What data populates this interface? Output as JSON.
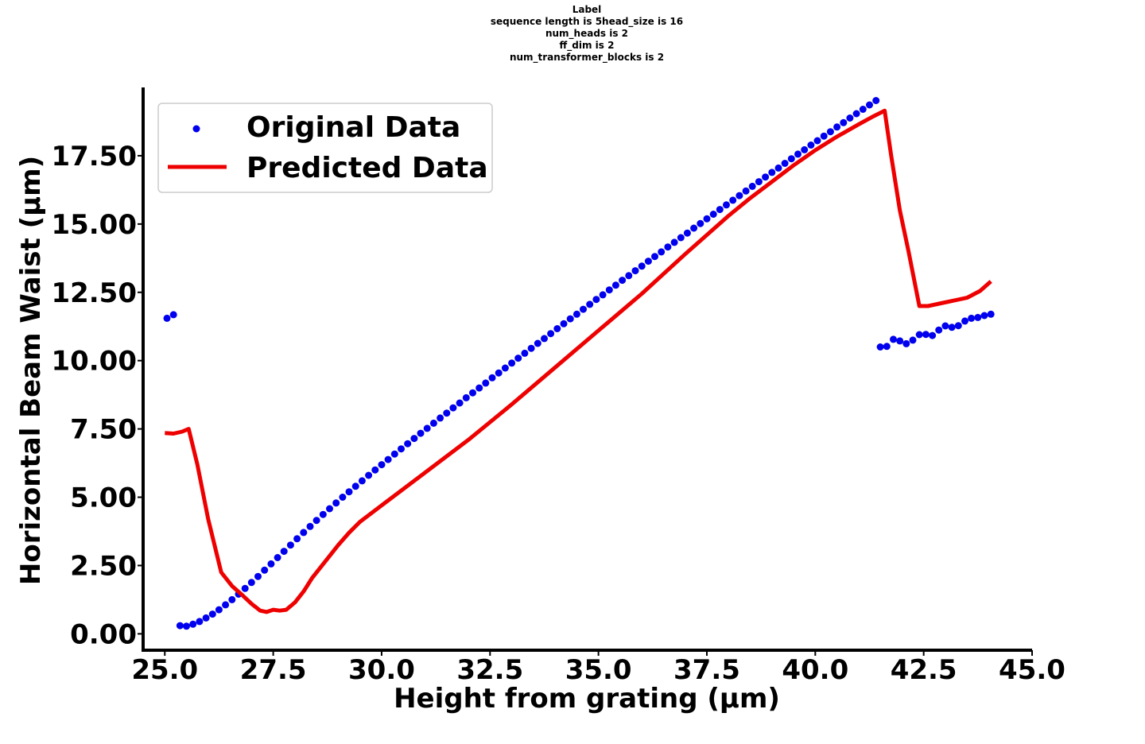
{
  "chart_data": {
    "type": "line",
    "title_lines": [
      "Label",
      "sequence length is 5head_size is 16",
      "num_heads is 2",
      "ff_dim is 2",
      "num_transformer_blocks is 2"
    ],
    "xlabel": "Height from grating (µm)",
    "ylabel": "Horizontal Beam Waist (µm)",
    "xlim": [
      24.5,
      45.0
    ],
    "ylim": [
      -0.6,
      20.0
    ],
    "x_ticks": [
      25.0,
      27.5,
      30.0,
      32.5,
      35.0,
      37.5,
      40.0,
      42.5,
      45.0
    ],
    "x_tick_labels": [
      "25.0",
      "27.5",
      "30.0",
      "32.5",
      "35.0",
      "37.5",
      "40.0",
      "42.5",
      "45.0"
    ],
    "y_ticks": [
      0,
      2.5,
      5,
      7.5,
      10,
      12.5,
      15,
      17.5
    ],
    "y_tick_labels": [
      "0.00",
      "2.50",
      "5.00",
      "7.50",
      "10.00",
      "12.50",
      "15.00",
      "17.50"
    ],
    "grid": false,
    "legend_position": "top-left",
    "series": [
      {
        "name": "Original Data",
        "style": "scatter",
        "color": "#0000ee",
        "points": [
          [
            25.05,
            11.55
          ],
          [
            25.2,
            11.68
          ],
          [
            25.35,
            0.3
          ],
          [
            25.5,
            0.28
          ],
          [
            25.65,
            0.35
          ],
          [
            25.8,
            0.45
          ],
          [
            25.95,
            0.58
          ],
          [
            26.1,
            0.72
          ],
          [
            26.25,
            0.88
          ],
          [
            26.4,
            1.06
          ],
          [
            26.55,
            1.25
          ],
          [
            26.7,
            1.45
          ],
          [
            26.85,
            1.66
          ],
          [
            27.0,
            1.88
          ],
          [
            27.15,
            2.1
          ],
          [
            27.3,
            2.33
          ],
          [
            27.45,
            2.56
          ],
          [
            27.6,
            2.79
          ],
          [
            27.75,
            3.02
          ],
          [
            27.9,
            3.25
          ],
          [
            28.05,
            3.48
          ],
          [
            28.2,
            3.71
          ],
          [
            28.35,
            3.93
          ],
          [
            28.5,
            4.15
          ],
          [
            28.65,
            4.37
          ],
          [
            28.8,
            4.58
          ],
          [
            28.95,
            4.79
          ],
          [
            29.1,
            5.0
          ],
          [
            29.25,
            5.2
          ],
          [
            29.4,
            5.4
          ],
          [
            29.55,
            5.6
          ],
          [
            29.7,
            5.8
          ],
          [
            29.85,
            6.0
          ],
          [
            30.0,
            6.19
          ],
          [
            30.15,
            6.38
          ],
          [
            30.3,
            6.58
          ],
          [
            30.45,
            6.77
          ],
          [
            30.6,
            6.96
          ],
          [
            30.75,
            7.15
          ],
          [
            30.9,
            7.34
          ],
          [
            31.05,
            7.52
          ],
          [
            31.2,
            7.71
          ],
          [
            31.35,
            7.9
          ],
          [
            31.5,
            8.08
          ],
          [
            31.65,
            8.27
          ],
          [
            31.8,
            8.45
          ],
          [
            31.95,
            8.64
          ],
          [
            32.1,
            8.82
          ],
          [
            32.25,
            9.0
          ],
          [
            32.4,
            9.18
          ],
          [
            32.55,
            9.37
          ],
          [
            32.7,
            9.55
          ],
          [
            32.85,
            9.73
          ],
          [
            33.0,
            9.91
          ],
          [
            33.15,
            10.09
          ],
          [
            33.3,
            10.27
          ],
          [
            33.45,
            10.45
          ],
          [
            33.6,
            10.63
          ],
          [
            33.75,
            10.81
          ],
          [
            33.9,
            10.99
          ],
          [
            34.05,
            11.17
          ],
          [
            34.2,
            11.35
          ],
          [
            34.35,
            11.53
          ],
          [
            34.5,
            11.7
          ],
          [
            34.65,
            11.88
          ],
          [
            34.8,
            12.06
          ],
          [
            34.95,
            12.24
          ],
          [
            35.1,
            12.41
          ],
          [
            35.25,
            12.59
          ],
          [
            35.4,
            12.76
          ],
          [
            35.55,
            12.94
          ],
          [
            35.7,
            13.11
          ],
          [
            35.85,
            13.29
          ],
          [
            36.0,
            13.46
          ],
          [
            36.15,
            13.64
          ],
          [
            36.3,
            13.81
          ],
          [
            36.45,
            13.98
          ],
          [
            36.6,
            14.16
          ],
          [
            36.75,
            14.33
          ],
          [
            36.9,
            14.5
          ],
          [
            37.05,
            14.67
          ],
          [
            37.2,
            14.85
          ],
          [
            37.35,
            15.02
          ],
          [
            37.5,
            15.19
          ],
          [
            37.65,
            15.36
          ],
          [
            37.8,
            15.53
          ],
          [
            37.95,
            15.7
          ],
          [
            38.1,
            15.87
          ],
          [
            38.25,
            16.04
          ],
          [
            38.4,
            16.21
          ],
          [
            38.55,
            16.38
          ],
          [
            38.7,
            16.55
          ],
          [
            38.85,
            16.72
          ],
          [
            39.0,
            16.89
          ],
          [
            39.15,
            17.05
          ],
          [
            39.3,
            17.22
          ],
          [
            39.45,
            17.39
          ],
          [
            39.6,
            17.56
          ],
          [
            39.75,
            17.72
          ],
          [
            39.9,
            17.89
          ],
          [
            40.05,
            18.05
          ],
          [
            40.2,
            18.22
          ],
          [
            40.35,
            18.38
          ],
          [
            40.5,
            18.55
          ],
          [
            40.65,
            18.71
          ],
          [
            40.8,
            18.88
          ],
          [
            40.95,
            19.04
          ],
          [
            41.1,
            19.2
          ],
          [
            41.25,
            19.36
          ],
          [
            41.4,
            19.52
          ],
          [
            41.5,
            10.5
          ],
          [
            41.65,
            10.52
          ],
          [
            41.8,
            10.78
          ],
          [
            41.95,
            10.72
          ],
          [
            42.1,
            10.62
          ],
          [
            42.25,
            10.75
          ],
          [
            42.4,
            10.95
          ],
          [
            42.55,
            10.96
          ],
          [
            42.7,
            10.92
          ],
          [
            42.85,
            11.12
          ],
          [
            43.0,
            11.27
          ],
          [
            43.15,
            11.22
          ],
          [
            43.3,
            11.28
          ],
          [
            43.45,
            11.45
          ],
          [
            43.6,
            11.55
          ],
          [
            43.75,
            11.58
          ],
          [
            43.9,
            11.65
          ],
          [
            44.05,
            11.7
          ]
        ]
      },
      {
        "name": "Predicted Data",
        "style": "line",
        "color": "#ee0000",
        "points": [
          [
            25.0,
            7.35
          ],
          [
            25.2,
            7.33
          ],
          [
            25.4,
            7.4
          ],
          [
            25.55,
            7.5
          ],
          [
            25.75,
            6.2
          ],
          [
            26.0,
            4.2
          ],
          [
            26.3,
            2.25
          ],
          [
            26.55,
            1.75
          ],
          [
            26.8,
            1.4
          ],
          [
            27.0,
            1.1
          ],
          [
            27.2,
            0.85
          ],
          [
            27.35,
            0.8
          ],
          [
            27.5,
            0.88
          ],
          [
            27.65,
            0.85
          ],
          [
            27.8,
            0.88
          ],
          [
            28.0,
            1.15
          ],
          [
            28.2,
            1.55
          ],
          [
            28.4,
            2.05
          ],
          [
            28.6,
            2.45
          ],
          [
            28.8,
            2.85
          ],
          [
            29.0,
            3.25
          ],
          [
            29.25,
            3.7
          ],
          [
            29.5,
            4.1
          ],
          [
            30.0,
            4.7
          ],
          [
            31.0,
            5.9
          ],
          [
            32.0,
            7.1
          ],
          [
            33.0,
            8.4
          ],
          [
            34.0,
            9.75
          ],
          [
            35.0,
            11.1
          ],
          [
            36.0,
            12.45
          ],
          [
            37.0,
            13.9
          ],
          [
            38.0,
            15.3
          ],
          [
            38.5,
            15.95
          ],
          [
            39.0,
            16.55
          ],
          [
            39.5,
            17.15
          ],
          [
            40.0,
            17.7
          ],
          [
            40.5,
            18.2
          ],
          [
            41.0,
            18.65
          ],
          [
            41.35,
            18.95
          ],
          [
            41.6,
            19.15
          ],
          [
            41.75,
            17.5
          ],
          [
            41.95,
            15.5
          ],
          [
            42.15,
            14.0
          ],
          [
            42.4,
            12.0
          ],
          [
            42.6,
            12.0
          ],
          [
            42.9,
            12.1
          ],
          [
            43.2,
            12.2
          ],
          [
            43.5,
            12.3
          ],
          [
            43.8,
            12.55
          ],
          [
            44.05,
            12.9
          ]
        ]
      }
    ]
  }
}
